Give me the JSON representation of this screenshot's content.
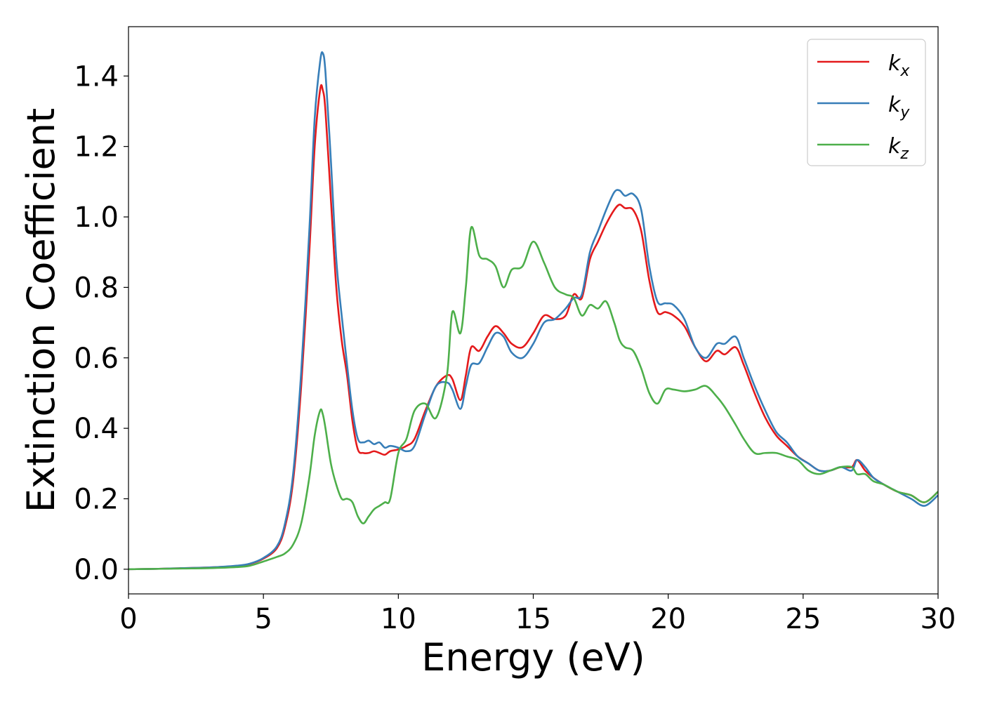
{
  "chart_data": {
    "type": "line",
    "xlabel": "Energy (eV)",
    "ylabel": "Extinction Coefficient",
    "xlim": [
      0,
      30
    ],
    "ylim": [
      -0.07,
      1.54
    ],
    "xticks": [
      0,
      5,
      10,
      15,
      20,
      25,
      30
    ],
    "xtick_labels": [
      "0",
      "5",
      "10",
      "15",
      "20",
      "25",
      "30"
    ],
    "yticks": [
      0.0,
      0.2,
      0.4,
      0.6,
      0.8,
      1.0,
      1.2,
      1.4
    ],
    "ytick_labels": [
      "0.0",
      "0.2",
      "0.4",
      "0.6",
      "0.8",
      "1.0",
      "1.2",
      "1.4"
    ],
    "grid": false,
    "legend_position": "top-right",
    "series": [
      {
        "name": "k_x",
        "label_base": "k",
        "label_sub": "x",
        "color": "#e41a1c",
        "x": [
          0,
          1,
          2,
          3,
          4,
          4.5,
          5,
          5.5,
          5.8,
          6.1,
          6.4,
          6.7,
          6.9,
          7.1,
          7.2,
          7.3,
          7.5,
          7.7,
          7.9,
          8.1,
          8.3,
          8.5,
          8.7,
          8.9,
          9.1,
          9.3,
          9.5,
          9.7,
          10.0,
          10.3,
          10.6,
          11.0,
          11.4,
          11.8,
          12.0,
          12.3,
          12.5,
          12.7,
          13.0,
          13.3,
          13.6,
          13.9,
          14.2,
          14.6,
          15.0,
          15.4,
          15.8,
          16.2,
          16.5,
          16.8,
          17.1,
          17.4,
          17.7,
          18.0,
          18.2,
          18.4,
          18.7,
          19.0,
          19.3,
          19.6,
          19.9,
          20.2,
          20.6,
          21.0,
          21.4,
          21.8,
          22.1,
          22.5,
          22.8,
          23.2,
          23.6,
          24.0,
          24.4,
          24.8,
          25.2,
          25.6,
          26.0,
          26.4,
          26.8,
          27.0,
          27.3,
          27.6,
          28.0,
          28.5,
          29.0,
          29.5,
          30.0
        ],
        "values": [
          0.0,
          0.001,
          0.003,
          0.005,
          0.009,
          0.015,
          0.03,
          0.06,
          0.12,
          0.25,
          0.52,
          0.9,
          1.2,
          1.36,
          1.36,
          1.3,
          1.05,
          0.8,
          0.65,
          0.55,
          0.42,
          0.34,
          0.33,
          0.33,
          0.335,
          0.33,
          0.325,
          0.335,
          0.34,
          0.35,
          0.37,
          0.45,
          0.52,
          0.55,
          0.54,
          0.48,
          0.55,
          0.63,
          0.62,
          0.66,
          0.69,
          0.67,
          0.64,
          0.63,
          0.67,
          0.72,
          0.71,
          0.72,
          0.78,
          0.77,
          0.88,
          0.93,
          0.98,
          1.02,
          1.035,
          1.025,
          1.02,
          0.96,
          0.82,
          0.73,
          0.73,
          0.72,
          0.69,
          0.63,
          0.59,
          0.62,
          0.61,
          0.63,
          0.58,
          0.5,
          0.43,
          0.38,
          0.35,
          0.32,
          0.3,
          0.28,
          0.28,
          0.29,
          0.29,
          0.31,
          0.28,
          0.26,
          0.24,
          0.22,
          0.21,
          0.19,
          0.22
        ]
      },
      {
        "name": "k_y",
        "label_base": "k",
        "label_sub": "y",
        "color": "#377eb8",
        "x": [
          0,
          1,
          2,
          3,
          4,
          4.5,
          5,
          5.5,
          5.8,
          6.1,
          6.4,
          6.7,
          6.9,
          7.1,
          7.2,
          7.3,
          7.5,
          7.7,
          7.9,
          8.1,
          8.3,
          8.5,
          8.7,
          8.9,
          9.1,
          9.3,
          9.5,
          9.7,
          10.0,
          10.3,
          10.6,
          11.0,
          11.4,
          11.8,
          12.0,
          12.3,
          12.5,
          12.7,
          13.0,
          13.3,
          13.6,
          13.9,
          14.2,
          14.6,
          15.0,
          15.4,
          15.8,
          16.2,
          16.5,
          16.8,
          17.1,
          17.4,
          17.7,
          18.0,
          18.2,
          18.4,
          18.7,
          19.0,
          19.3,
          19.6,
          19.9,
          20.2,
          20.6,
          21.0,
          21.4,
          21.8,
          22.1,
          22.5,
          22.8,
          23.2,
          23.6,
          24.0,
          24.4,
          24.8,
          25.2,
          25.6,
          26.0,
          26.4,
          26.8,
          27.0,
          27.3,
          27.6,
          28.0,
          28.5,
          29.0,
          29.5,
          30.0
        ],
        "values": [
          0.0,
          0.001,
          0.003,
          0.005,
          0.01,
          0.016,
          0.032,
          0.065,
          0.13,
          0.27,
          0.56,
          0.96,
          1.28,
          1.44,
          1.465,
          1.41,
          1.16,
          0.88,
          0.72,
          0.58,
          0.45,
          0.37,
          0.36,
          0.365,
          0.355,
          0.36,
          0.345,
          0.35,
          0.345,
          0.335,
          0.35,
          0.44,
          0.52,
          0.53,
          0.51,
          0.455,
          0.52,
          0.58,
          0.585,
          0.63,
          0.67,
          0.66,
          0.615,
          0.6,
          0.64,
          0.7,
          0.71,
          0.74,
          0.77,
          0.78,
          0.9,
          0.96,
          1.02,
          1.07,
          1.075,
          1.06,
          1.065,
          1.02,
          0.86,
          0.76,
          0.755,
          0.75,
          0.71,
          0.63,
          0.6,
          0.64,
          0.64,
          0.66,
          0.6,
          0.52,
          0.45,
          0.39,
          0.36,
          0.32,
          0.3,
          0.28,
          0.28,
          0.29,
          0.28,
          0.31,
          0.29,
          0.26,
          0.24,
          0.22,
          0.2,
          0.18,
          0.21
        ]
      },
      {
        "name": "k_z",
        "label_base": "k",
        "label_sub": "z",
        "color": "#4daf4a",
        "x": [
          0,
          1,
          2,
          3,
          4,
          4.5,
          5,
          5.5,
          5.8,
          6.1,
          6.4,
          6.7,
          6.9,
          7.1,
          7.2,
          7.3,
          7.5,
          7.7,
          7.9,
          8.1,
          8.3,
          8.5,
          8.7,
          8.9,
          9.1,
          9.3,
          9.5,
          9.7,
          10.0,
          10.3,
          10.6,
          11.0,
          11.4,
          11.8,
          12.0,
          12.3,
          12.5,
          12.7,
          13.0,
          13.3,
          13.6,
          13.9,
          14.2,
          14.6,
          15.0,
          15.4,
          15.8,
          16.2,
          16.5,
          16.8,
          17.1,
          17.4,
          17.7,
          18.0,
          18.2,
          18.4,
          18.7,
          19.0,
          19.3,
          19.6,
          19.9,
          20.2,
          20.6,
          21.0,
          21.4,
          21.8,
          22.1,
          22.5,
          22.8,
          23.2,
          23.6,
          24.0,
          24.4,
          24.8,
          25.2,
          25.6,
          26.0,
          26.4,
          26.8,
          27.0,
          27.3,
          27.6,
          28.0,
          28.5,
          29.0,
          29.5,
          30.0
        ],
        "values": [
          0.0,
          0.001,
          0.002,
          0.003,
          0.006,
          0.01,
          0.022,
          0.035,
          0.045,
          0.07,
          0.13,
          0.26,
          0.38,
          0.45,
          0.44,
          0.4,
          0.3,
          0.24,
          0.2,
          0.2,
          0.19,
          0.15,
          0.13,
          0.15,
          0.17,
          0.18,
          0.19,
          0.2,
          0.33,
          0.37,
          0.45,
          0.47,
          0.43,
          0.55,
          0.73,
          0.67,
          0.8,
          0.97,
          0.89,
          0.88,
          0.86,
          0.8,
          0.85,
          0.86,
          0.93,
          0.87,
          0.8,
          0.78,
          0.77,
          0.72,
          0.75,
          0.74,
          0.76,
          0.7,
          0.65,
          0.63,
          0.62,
          0.57,
          0.5,
          0.47,
          0.51,
          0.51,
          0.505,
          0.51,
          0.52,
          0.49,
          0.46,
          0.41,
          0.37,
          0.33,
          0.33,
          0.33,
          0.32,
          0.31,
          0.28,
          0.27,
          0.28,
          0.29,
          0.29,
          0.27,
          0.27,
          0.25,
          0.24,
          0.22,
          0.21,
          0.19,
          0.22
        ]
      }
    ]
  }
}
